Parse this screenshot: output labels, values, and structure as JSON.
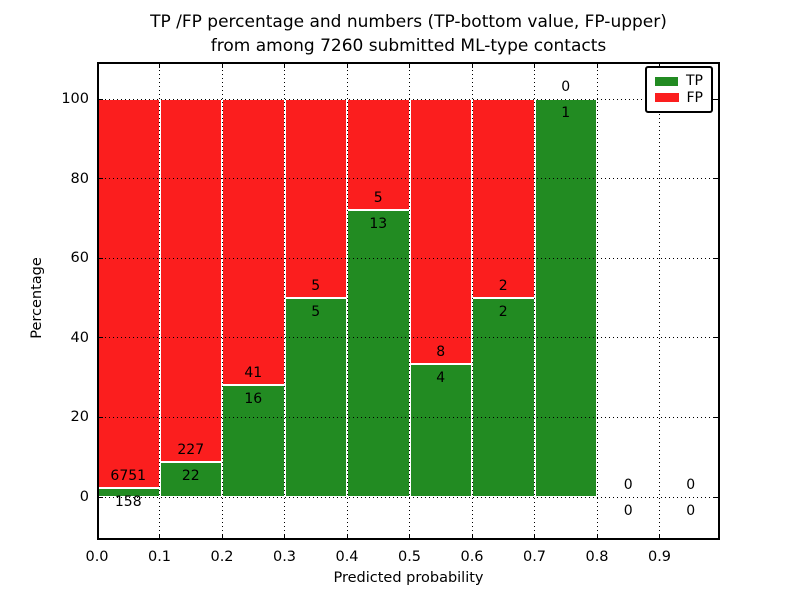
{
  "chart_data": {
    "type": "bar",
    "stacked": true,
    "normalized": "percentage",
    "title_line1": "TP /FP percentage and numbers (TP-bottom value, FP-upper)",
    "title_line2": "from among 7260 submitted ML-type contacts",
    "xlabel": "Predicted probability",
    "ylabel": "Percentage",
    "xlim": [
      0.0,
      1.0
    ],
    "ylim": [
      -11,
      109
    ],
    "grid": "dotted",
    "legend_position": "upper-right",
    "xticks": [
      "0.0",
      "0.1",
      "0.2",
      "0.3",
      "0.4",
      "0.5",
      "0.6",
      "0.7",
      "0.8",
      "0.9"
    ],
    "yticks": [
      "0",
      "20",
      "40",
      "60",
      "80",
      "100"
    ],
    "series": [
      {
        "name": "TP",
        "color": "#228b22"
      },
      {
        "name": "FP",
        "color": "#fb1e1e"
      }
    ],
    "total_contacts": 7260,
    "bins": [
      {
        "x0": 0.0,
        "x1": 0.1,
        "tp": 158,
        "fp": 6751
      },
      {
        "x0": 0.1,
        "x1": 0.2,
        "tp": 22,
        "fp": 227
      },
      {
        "x0": 0.2,
        "x1": 0.3,
        "tp": 16,
        "fp": 41
      },
      {
        "x0": 0.3,
        "x1": 0.4,
        "tp": 5,
        "fp": 5
      },
      {
        "x0": 0.4,
        "x1": 0.5,
        "tp": 13,
        "fp": 5
      },
      {
        "x0": 0.5,
        "x1": 0.6,
        "tp": 4,
        "fp": 8
      },
      {
        "x0": 0.6,
        "x1": 0.7,
        "tp": 2,
        "fp": 2
      },
      {
        "x0": 0.7,
        "x1": 0.8,
        "tp": 1,
        "fp": 0
      },
      {
        "x0": 0.8,
        "x1": 0.9,
        "tp": 0,
        "fp": 0
      },
      {
        "x0": 0.9,
        "x1": 1.0,
        "tp": 0,
        "fp": 0
      }
    ]
  }
}
